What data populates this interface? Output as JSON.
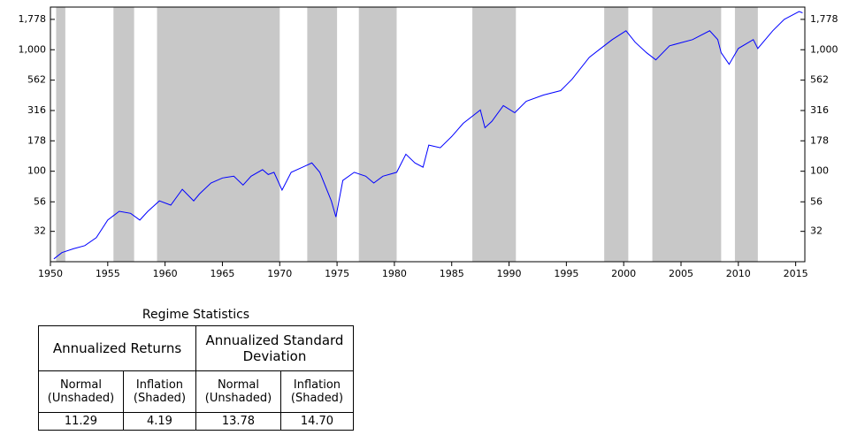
{
  "chart_data": {
    "type": "line",
    "log_scale": true,
    "xlim": [
      1950,
      2015.8
    ],
    "ylim": [
      18,
      2245
    ],
    "xticks": [
      1950,
      1955,
      1960,
      1965,
      1970,
      1975,
      1980,
      1985,
      1990,
      1995,
      2000,
      2005,
      2010,
      2015
    ],
    "yticks": [
      32,
      56,
      100,
      178,
      316,
      562,
      {
        "value": 1000,
        "label": "1,000"
      },
      {
        "value": 1778,
        "label": "1,778"
      }
    ],
    "shade_color": "#c8c8c8",
    "shaded": [
      [
        1950.5,
        1951.3
      ],
      [
        1955.5,
        1957.3
      ],
      [
        1959.3,
        1970.0
      ],
      [
        1972.4,
        1975.0
      ],
      [
        1976.9,
        1980.2
      ],
      [
        1986.8,
        1990.6
      ],
      [
        1998.3,
        2000.4
      ],
      [
        2002.5,
        2008.5
      ],
      [
        2009.7,
        2011.7
      ]
    ],
    "series": [
      {
        "color": "#0000ff",
        "x": [
          1950.3,
          1951,
          1952,
          1953,
          1954,
          1955,
          1956,
          1957,
          1957.8,
          1958.5,
          1959.5,
          1960.5,
          1961.5,
          1962.5,
          1963,
          1964,
          1965,
          1966,
          1966.8,
          1967.5,
          1968.5,
          1969,
          1969.5,
          1970.2,
          1971,
          1972,
          1972.8,
          1973.5,
          1974.5,
          1974.9,
          1975.5,
          1976.5,
          1977.5,
          1978.2,
          1979,
          1980.2,
          1981,
          1981.8,
          1982.5,
          1983,
          1984,
          1985,
          1986,
          1987.5,
          1987.9,
          1988.5,
          1989.5,
          1990.5,
          1991.5,
          1993,
          1994.5,
          1995.5,
          1997,
          1998,
          1999,
          2000.2,
          2001,
          2002,
          2002.8,
          2004,
          2006,
          2007.5,
          2008.2,
          2008.5,
          2009.2,
          2010,
          2011.3,
          2011.7,
          2013,
          2014,
          2015.3,
          2015.6
        ],
        "values": [
          19,
          21.4,
          23,
          24.4,
          28.4,
          39.6,
          46.8,
          45,
          39.6,
          46.8,
          57,
          52.6,
          71,
          57,
          65,
          80,
          88,
          91,
          77,
          91,
          103,
          94,
          98,
          70,
          98,
          108,
          117,
          98,
          57,
          42,
          84,
          98,
          91,
          80,
          91,
          98,
          138,
          117,
          108,
          164,
          156,
          193,
          248,
          319,
          228,
          257,
          347,
          303,
          377,
          424,
          461,
          572,
          867,
          1025,
          1212,
          1432,
          1154,
          944,
          826,
          1078,
          1212,
          1432,
          1212,
          944,
          759,
          1025,
          1212,
          1025,
          1432,
          1778,
          2066,
          2014
        ]
      }
    ]
  },
  "table": {
    "title": "Regime Statistics",
    "groups": [
      "Annualized Returns",
      "Annualized Standard Deviation"
    ],
    "columns": [
      "Normal (Unshaded)",
      "Inflation (Shaded)",
      "Normal (Unshaded)",
      "Inflation (Shaded)"
    ],
    "rows": [
      [
        "11.29",
        "4.19",
        "13.78",
        "14.70"
      ]
    ]
  }
}
